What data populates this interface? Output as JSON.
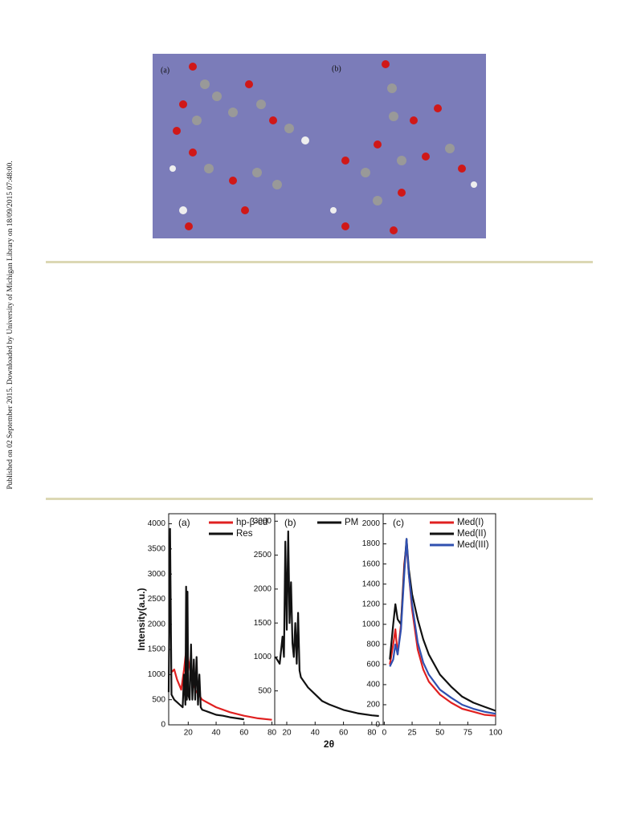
{
  "sidebar": "Published on 02 September 2015. Downloaded by University of Michigan Library on 18/09/2015 07:48:00.",
  "figure_top": {
    "labels": [
      "(a)",
      "(b)"
    ]
  },
  "chart_data": [
    {
      "type": "line",
      "panel_label": "(a)",
      "ylabel": "Intensity(a.u.)",
      "legend": "upper right",
      "xlim": [
        6,
        82
      ],
      "ylim": [
        0,
        4200
      ],
      "xticks": [
        20,
        40,
        60,
        80
      ],
      "yticks": [
        0,
        500,
        1000,
        1500,
        2000,
        2500,
        3000,
        3500,
        4000
      ],
      "series": [
        {
          "name": "hp-β-cd",
          "color": "#e02020",
          "x": [
            8,
            10,
            12,
            15,
            17,
            19,
            20,
            22,
            25,
            30,
            40,
            50,
            60,
            70,
            80
          ],
          "values": [
            1050,
            1100,
            900,
            700,
            1100,
            1600,
            1300,
            1000,
            700,
            500,
            350,
            250,
            180,
            130,
            100
          ]
        },
        {
          "name": "Res",
          "color": "#111111",
          "x": [
            6,
            7,
            8,
            10,
            12,
            14,
            16,
            17,
            18,
            18.5,
            19,
            19.5,
            20,
            21,
            22,
            23,
            24,
            25,
            26,
            27,
            28,
            29,
            30,
            35,
            40,
            45,
            50,
            55,
            60
          ],
          "values": [
            650,
            3900,
            600,
            500,
            450,
            400,
            350,
            1000,
            400,
            2750,
            500,
            2650,
            600,
            500,
            1600,
            500,
            1300,
            500,
            1350,
            400,
            1000,
            350,
            300,
            250,
            200,
            180,
            150,
            130,
            110
          ]
        }
      ]
    },
    {
      "type": "line",
      "panel_label": "(b)",
      "xlabel": "2θ",
      "legend": "upper right",
      "xlim": [
        11.5,
        88
      ],
      "ylim": [
        0,
        3110
      ],
      "xticks": [
        20,
        40,
        60,
        80
      ],
      "yticks": [
        500,
        1000,
        1500,
        2000,
        2500,
        3000
      ],
      "series": [
        {
          "name": "PM",
          "color": "#111111",
          "x": [
            12,
            15,
            17,
            18,
            19,
            20,
            21,
            22,
            23,
            24,
            25,
            26,
            27,
            28,
            29,
            30,
            35,
            40,
            45,
            50,
            60,
            70,
            80,
            85
          ],
          "values": [
            1000,
            900,
            1300,
            1000,
            2700,
            1400,
            2850,
            1500,
            2100,
            1200,
            1000,
            1500,
            900,
            1650,
            800,
            700,
            550,
            450,
            350,
            300,
            220,
            170,
            140,
            130
          ]
        }
      ]
    },
    {
      "type": "line",
      "panel_label": "(c)",
      "legend": "upper right",
      "xlim": [
        -1,
        100
      ],
      "ylim": [
        0,
        2100
      ],
      "xticks": [
        0,
        25,
        50,
        75,
        100
      ],
      "yticks": [
        0,
        200,
        400,
        600,
        800,
        1000,
        1200,
        1400,
        1600,
        1800,
        2000
      ],
      "series": [
        {
          "name": "Med(I)",
          "color": "#e02020",
          "x": [
            5,
            8,
            10,
            12,
            15,
            18,
            20,
            22,
            25,
            30,
            35,
            40,
            50,
            60,
            70,
            80,
            90,
            100
          ],
          "values": [
            600,
            800,
            950,
            700,
            1000,
            1600,
            1800,
            1500,
            1150,
            750,
            550,
            430,
            300,
            220,
            160,
            130,
            100,
            90
          ]
        },
        {
          "name": "Med(II)",
          "color": "#111111",
          "x": [
            5,
            8,
            10,
            12,
            15,
            18,
            20,
            22,
            25,
            30,
            35,
            40,
            50,
            60,
            70,
            80,
            90,
            100
          ],
          "values": [
            650,
            1000,
            1200,
            1050,
            1000,
            1550,
            1850,
            1550,
            1300,
            1050,
            850,
            700,
            500,
            380,
            280,
            220,
            180,
            140
          ]
        },
        {
          "name": "Med(III)",
          "color": "#3050b0",
          "x": [
            5,
            8,
            10,
            12,
            15,
            18,
            20,
            22,
            25,
            30,
            35,
            40,
            50,
            60,
            70,
            80,
            90,
            100
          ],
          "values": [
            580,
            650,
            800,
            700,
            950,
            1500,
            1850,
            1500,
            1200,
            820,
            620,
            500,
            350,
            270,
            200,
            160,
            130,
            110
          ]
        }
      ]
    }
  ]
}
